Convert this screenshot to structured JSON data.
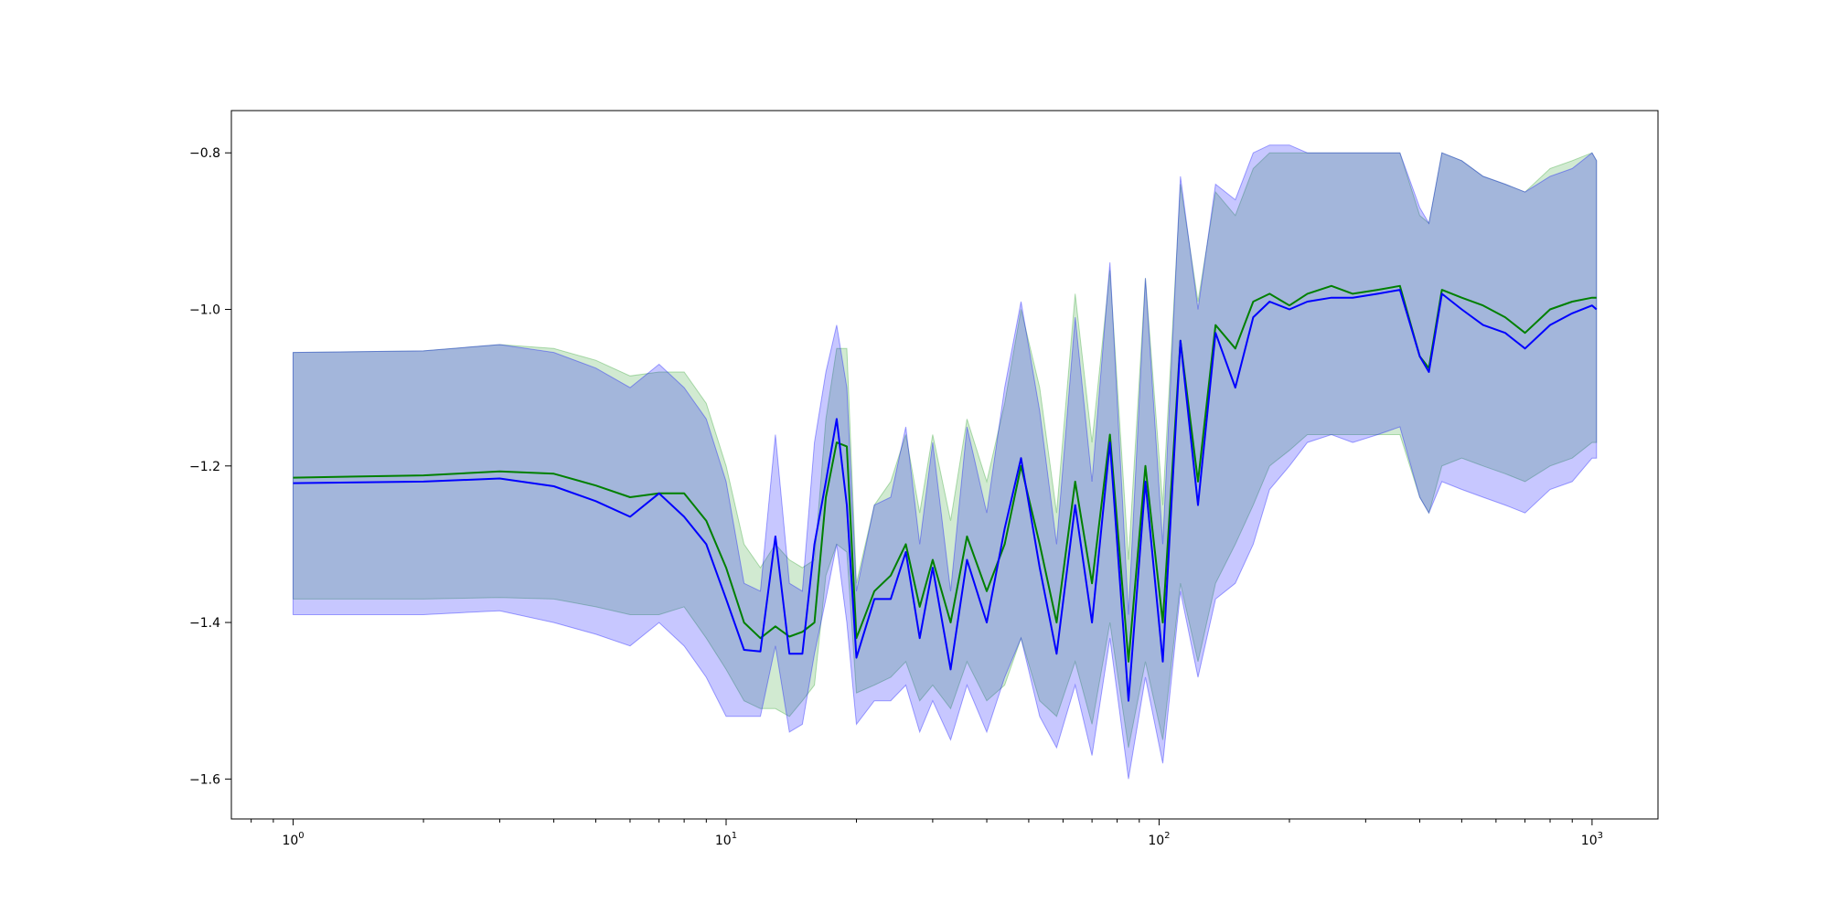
{
  "chart_data": {
    "type": "line",
    "xscale": "log",
    "xlim": [
      0.72,
      1420
    ],
    "ylim": [
      -1.651,
      -0.746
    ],
    "grid": false,
    "legend": "none",
    "xticks": [
      {
        "value": 1,
        "base": "10",
        "exp": "0"
      },
      {
        "value": 10,
        "base": "10",
        "exp": "1"
      },
      {
        "value": 100,
        "base": "10",
        "exp": "2"
      },
      {
        "value": 1000,
        "base": "10",
        "exp": "3"
      }
    ],
    "yticks": [
      {
        "value": -0.8,
        "label": "−0.8"
      },
      {
        "value": -1.0,
        "label": "−1.0"
      },
      {
        "value": -1.2,
        "label": "−1.2"
      },
      {
        "value": -1.4,
        "label": "−1.4"
      },
      {
        "value": -1.6,
        "label": "−1.6"
      }
    ],
    "series": [
      {
        "color": "#008000",
        "band_color": "#2ca02c",
        "x": [
          1,
          2,
          3,
          4,
          5,
          6,
          7,
          8,
          9,
          10,
          11,
          12,
          13,
          14,
          15,
          16,
          17,
          18,
          19,
          20,
          22,
          24,
          26,
          28,
          30,
          33,
          36,
          40,
          44,
          48,
          53,
          58,
          64,
          70,
          77,
          85,
          93,
          102,
          112,
          123,
          135,
          150,
          165,
          180,
          200,
          220,
          250,
          280,
          320,
          360,
          400,
          420,
          450,
          500,
          560,
          630,
          700,
          800,
          900,
          1000,
          1024
        ],
        "y": [
          -1.215,
          -1.212,
          -1.207,
          -1.21,
          -1.225,
          -1.24,
          -1.235,
          -1.235,
          -1.27,
          -1.33,
          -1.4,
          -1.42,
          -1.405,
          -1.418,
          -1.412,
          -1.4,
          -1.24,
          -1.17,
          -1.175,
          -1.42,
          -1.36,
          -1.34,
          -1.3,
          -1.38,
          -1.32,
          -1.4,
          -1.29,
          -1.36,
          -1.3,
          -1.2,
          -1.3,
          -1.4,
          -1.22,
          -1.35,
          -1.16,
          -1.45,
          -1.2,
          -1.4,
          -1.04,
          -1.22,
          -1.02,
          -1.05,
          -0.99,
          -0.98,
          -0.995,
          -0.98,
          -0.97,
          -0.98,
          -0.975,
          -0.97,
          -1.06,
          -1.075,
          -0.975,
          -0.985,
          -0.995,
          -1.01,
          -1.03,
          -1.0,
          -0.99,
          -0.985,
          -0.985
        ],
        "lower": [
          -1.37,
          -1.37,
          -1.368,
          -1.37,
          -1.38,
          -1.39,
          -1.39,
          -1.38,
          -1.42,
          -1.46,
          -1.5,
          -1.51,
          -1.51,
          -1.52,
          -1.5,
          -1.48,
          -1.34,
          -1.3,
          -1.31,
          -1.49,
          -1.48,
          -1.47,
          -1.45,
          -1.5,
          -1.48,
          -1.51,
          -1.45,
          -1.5,
          -1.48,
          -1.42,
          -1.5,
          -1.52,
          -1.45,
          -1.53,
          -1.4,
          -1.56,
          -1.45,
          -1.55,
          -1.35,
          -1.45,
          -1.35,
          -1.3,
          -1.25,
          -1.2,
          -1.18,
          -1.16,
          -1.16,
          -1.16,
          -1.16,
          -1.16,
          -1.24,
          -1.26,
          -1.2,
          -1.19,
          -1.2,
          -1.21,
          -1.22,
          -1.2,
          -1.19,
          -1.17,
          -1.17
        ],
        "upper": [
          -1.055,
          -1.053,
          -1.045,
          -1.05,
          -1.065,
          -1.085,
          -1.08,
          -1.08,
          -1.12,
          -1.2,
          -1.3,
          -1.33,
          -1.3,
          -1.32,
          -1.33,
          -1.32,
          -1.14,
          -1.05,
          -1.05,
          -1.35,
          -1.25,
          -1.22,
          -1.16,
          -1.26,
          -1.16,
          -1.27,
          -1.14,
          -1.22,
          -1.12,
          -1.0,
          -1.1,
          -1.26,
          -0.98,
          -1.17,
          -0.95,
          -1.32,
          -0.96,
          -1.25,
          -0.84,
          -0.99,
          -0.85,
          -0.88,
          -0.82,
          -0.8,
          -0.8,
          -0.8,
          -0.8,
          -0.8,
          -0.8,
          -0.8,
          -0.88,
          -0.89,
          -0.8,
          -0.81,
          -0.83,
          -0.84,
          -0.85,
          -0.82,
          -0.81,
          -0.8,
          -0.81
        ]
      },
      {
        "color": "#0000ff",
        "band_color": "#0000ff",
        "x": [
          1,
          2,
          3,
          4,
          5,
          6,
          7,
          8,
          9,
          10,
          11,
          12,
          13,
          14,
          15,
          16,
          17,
          18,
          19,
          20,
          22,
          24,
          26,
          28,
          30,
          33,
          36,
          40,
          44,
          48,
          53,
          58,
          64,
          70,
          77,
          85,
          93,
          102,
          112,
          123,
          135,
          150,
          165,
          180,
          200,
          220,
          250,
          280,
          320,
          360,
          400,
          420,
          450,
          500,
          560,
          630,
          700,
          800,
          900,
          1000,
          1024
        ],
        "y": [
          -1.222,
          -1.22,
          -1.216,
          -1.226,
          -1.245,
          -1.265,
          -1.235,
          -1.265,
          -1.3,
          -1.37,
          -1.435,
          -1.437,
          -1.29,
          -1.44,
          -1.44,
          -1.3,
          -1.22,
          -1.14,
          -1.25,
          -1.445,
          -1.37,
          -1.37,
          -1.31,
          -1.42,
          -1.33,
          -1.46,
          -1.32,
          -1.4,
          -1.28,
          -1.19,
          -1.33,
          -1.44,
          -1.25,
          -1.4,
          -1.17,
          -1.5,
          -1.22,
          -1.45,
          -1.04,
          -1.25,
          -1.03,
          -1.1,
          -1.01,
          -0.99,
          -1.0,
          -0.99,
          -0.985,
          -0.985,
          -0.98,
          -0.975,
          -1.06,
          -1.08,
          -0.98,
          -1.0,
          -1.02,
          -1.03,
          -1.05,
          -1.02,
          -1.005,
          -0.995,
          -1.0
        ],
        "lower": [
          -1.39,
          -1.39,
          -1.385,
          -1.4,
          -1.415,
          -1.43,
          -1.4,
          -1.43,
          -1.47,
          -1.52,
          -1.52,
          -1.52,
          -1.43,
          -1.54,
          -1.53,
          -1.44,
          -1.37,
          -1.3,
          -1.4,
          -1.53,
          -1.5,
          -1.5,
          -1.48,
          -1.54,
          -1.5,
          -1.55,
          -1.48,
          -1.54,
          -1.47,
          -1.42,
          -1.52,
          -1.56,
          -1.48,
          -1.57,
          -1.42,
          -1.6,
          -1.47,
          -1.58,
          -1.36,
          -1.47,
          -1.37,
          -1.35,
          -1.3,
          -1.23,
          -1.2,
          -1.17,
          -1.16,
          -1.17,
          -1.16,
          -1.15,
          -1.24,
          -1.26,
          -1.22,
          -1.23,
          -1.24,
          -1.25,
          -1.26,
          -1.23,
          -1.22,
          -1.19,
          -1.19
        ],
        "upper": [
          -1.055,
          -1.053,
          -1.045,
          -1.055,
          -1.075,
          -1.1,
          -1.07,
          -1.1,
          -1.14,
          -1.22,
          -1.35,
          -1.36,
          -1.16,
          -1.35,
          -1.36,
          -1.17,
          -1.08,
          -1.02,
          -1.1,
          -1.36,
          -1.25,
          -1.24,
          -1.15,
          -1.3,
          -1.17,
          -1.36,
          -1.15,
          -1.26,
          -1.1,
          -0.99,
          -1.13,
          -1.3,
          -1.01,
          -1.22,
          -0.94,
          -1.39,
          -0.96,
          -1.3,
          -0.83,
          -1.0,
          -0.84,
          -0.86,
          -0.8,
          -0.79,
          -0.79,
          -0.8,
          -0.8,
          -0.8,
          -0.8,
          -0.8,
          -0.87,
          -0.89,
          -0.8,
          -0.81,
          -0.83,
          -0.84,
          -0.85,
          -0.83,
          -0.82,
          -0.8,
          -0.81
        ]
      }
    ]
  }
}
